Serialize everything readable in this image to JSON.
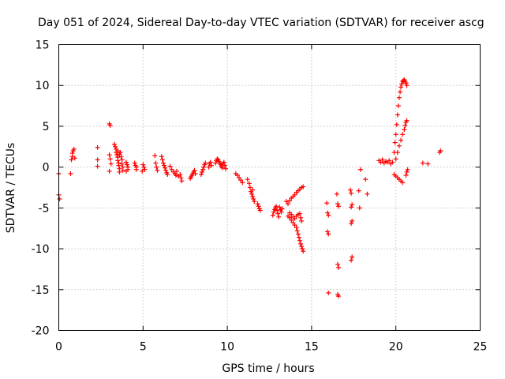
{
  "chart_data": {
    "type": "scatter",
    "title": "Day 051 of 2024, Sidereal Day-to-day VTEC variation (SDTVAR) for receiver ascg",
    "xlabel": "GPS time / hours",
    "ylabel": "SDTVAR / TECUs",
    "xlim": [
      0,
      25
    ],
    "ylim": [
      -20,
      15
    ],
    "xticks": [
      0,
      5,
      10,
      15,
      20,
      25
    ],
    "yticks": [
      -20,
      -15,
      -10,
      -5,
      0,
      5,
      10,
      15
    ],
    "grid": true,
    "marker": "+",
    "color": "#ff0000",
    "series": [
      {
        "name": "SDTVAR",
        "points": [
          [
            0.0,
            -0.8
          ],
          [
            0.0,
            -3.4
          ],
          [
            0.05,
            -3.9
          ],
          [
            0.7,
            -0.8
          ],
          [
            0.75,
            0.9
          ],
          [
            0.8,
            1.3
          ],
          [
            0.8,
            1.7
          ],
          [
            0.85,
            2.0
          ],
          [
            0.9,
            2.2
          ],
          [
            0.95,
            1.1
          ],
          [
            2.3,
            2.4
          ],
          [
            2.3,
            0.9
          ],
          [
            2.3,
            0.1
          ],
          [
            3.0,
            5.3
          ],
          [
            3.05,
            5.1
          ],
          [
            3.0,
            1.5
          ],
          [
            3.05,
            1.0
          ],
          [
            3.1,
            0.4
          ],
          [
            3.0,
            -0.5
          ],
          [
            3.3,
            2.8
          ],
          [
            3.35,
            2.5
          ],
          [
            3.4,
            2.2
          ],
          [
            3.4,
            1.8
          ],
          [
            3.45,
            1.5
          ],
          [
            3.5,
            1.2
          ],
          [
            3.5,
            0.8
          ],
          [
            3.55,
            0.5
          ],
          [
            3.55,
            0.2
          ],
          [
            3.6,
            -0.2
          ],
          [
            3.6,
            -0.6
          ],
          [
            3.65,
            1.8
          ],
          [
            3.7,
            1.3
          ],
          [
            3.75,
            0.9
          ],
          [
            3.75,
            0.4
          ],
          [
            3.8,
            0.0
          ],
          [
            3.8,
            -0.4
          ],
          [
            3.5,
            2.0
          ],
          [
            3.6,
            1.6
          ],
          [
            4.0,
            0.6
          ],
          [
            4.05,
            0.3
          ],
          [
            4.1,
            0.0
          ],
          [
            4.1,
            -0.3
          ],
          [
            4.0,
            -0.5
          ],
          [
            4.5,
            0.5
          ],
          [
            4.55,
            0.2
          ],
          [
            4.6,
            0.0
          ],
          [
            4.6,
            -0.3
          ],
          [
            5.0,
            0.3
          ],
          [
            5.05,
            0.0
          ],
          [
            5.1,
            -0.3
          ],
          [
            4.95,
            -0.5
          ],
          [
            5.7,
            1.4
          ],
          [
            5.75,
            0.5
          ],
          [
            5.8,
            0.0
          ],
          [
            5.85,
            -0.4
          ],
          [
            6.1,
            1.3
          ],
          [
            6.15,
            0.9
          ],
          [
            6.2,
            0.5
          ],
          [
            6.25,
            0.2
          ],
          [
            6.3,
            -0.1
          ],
          [
            6.35,
            -0.4
          ],
          [
            6.4,
            -0.7
          ],
          [
            6.45,
            -0.9
          ],
          [
            6.6,
            0.1
          ],
          [
            6.7,
            -0.3
          ],
          [
            6.8,
            -0.6
          ],
          [
            6.9,
            -0.8
          ],
          [
            6.95,
            -1.0
          ],
          [
            7.0,
            -0.5
          ],
          [
            7.1,
            -1.1
          ],
          [
            7.2,
            -0.9
          ],
          [
            7.25,
            -1.3
          ],
          [
            7.3,
            -1.7
          ],
          [
            7.8,
            -1.4
          ],
          [
            7.85,
            -1.2
          ],
          [
            7.9,
            -1.0
          ],
          [
            7.95,
            -0.8
          ],
          [
            8.0,
            -0.6
          ],
          [
            8.05,
            -0.4
          ],
          [
            8.1,
            -0.8
          ],
          [
            8.5,
            -0.6
          ],
          [
            8.55,
            -0.3
          ],
          [
            8.6,
            0.0
          ],
          [
            8.65,
            0.3
          ],
          [
            8.7,
            0.5
          ],
          [
            8.45,
            -0.9
          ],
          [
            8.9,
            0.0
          ],
          [
            8.95,
            0.4
          ],
          [
            9.0,
            0.6
          ],
          [
            9.05,
            0.2
          ],
          [
            9.3,
            0.5
          ],
          [
            9.35,
            0.8
          ],
          [
            9.4,
            1.0
          ],
          [
            9.45,
            0.9
          ],
          [
            9.5,
            0.7
          ],
          [
            9.55,
            0.5
          ],
          [
            9.6,
            0.3
          ],
          [
            9.65,
            0.1
          ],
          [
            9.7,
            -0.1
          ],
          [
            9.75,
            0.4
          ],
          [
            9.8,
            0.6
          ],
          [
            9.85,
            0.2
          ],
          [
            9.9,
            -0.2
          ],
          [
            10.5,
            -0.8
          ],
          [
            10.6,
            -1.0
          ],
          [
            10.7,
            -1.3
          ],
          [
            10.8,
            -1.6
          ],
          [
            10.9,
            -1.9
          ],
          [
            11.2,
            -1.5
          ],
          [
            11.3,
            -2.0
          ],
          [
            11.35,
            -2.5
          ],
          [
            11.4,
            -3.0
          ],
          [
            11.45,
            -3.3
          ],
          [
            11.5,
            -3.6
          ],
          [
            11.55,
            -3.9
          ],
          [
            11.6,
            -4.2
          ],
          [
            11.5,
            -2.8
          ],
          [
            11.8,
            -4.5
          ],
          [
            11.85,
            -4.8
          ],
          [
            11.9,
            -5.1
          ],
          [
            11.95,
            -5.3
          ],
          [
            12.7,
            -5.9
          ],
          [
            12.75,
            -5.5
          ],
          [
            12.8,
            -5.2
          ],
          [
            12.85,
            -5.0
          ],
          [
            12.9,
            -4.8
          ],
          [
            12.95,
            -5.3
          ],
          [
            13.0,
            -5.7
          ],
          [
            13.05,
            -6.1
          ],
          [
            13.1,
            -4.9
          ],
          [
            13.15,
            -5.2
          ],
          [
            13.2,
            -5.5
          ],
          [
            13.25,
            -5.1
          ],
          [
            13.5,
            -4.2
          ],
          [
            13.6,
            -4.5
          ],
          [
            13.7,
            -4.1
          ],
          [
            13.8,
            -3.8
          ],
          [
            13.9,
            -3.6
          ],
          [
            14.0,
            -3.4
          ],
          [
            14.1,
            -3.1
          ],
          [
            14.2,
            -2.9
          ],
          [
            14.3,
            -2.7
          ],
          [
            14.4,
            -2.5
          ],
          [
            14.5,
            -2.4
          ],
          [
            13.6,
            -6.0
          ],
          [
            13.7,
            -6.2
          ],
          [
            13.8,
            -6.5
          ],
          [
            13.9,
            -6.8
          ],
          [
            14.0,
            -7.1
          ],
          [
            14.1,
            -7.4
          ],
          [
            14.15,
            -7.8
          ],
          [
            14.2,
            -8.2
          ],
          [
            14.25,
            -8.6
          ],
          [
            14.3,
            -9.0
          ],
          [
            14.35,
            -9.4
          ],
          [
            14.4,
            -9.7
          ],
          [
            14.45,
            -10.0
          ],
          [
            14.5,
            -10.3
          ],
          [
            13.7,
            -5.6
          ],
          [
            13.8,
            -5.8
          ],
          [
            13.9,
            -6.1
          ],
          [
            14.0,
            -6.3
          ],
          [
            14.1,
            -6.0
          ],
          [
            14.2,
            -5.8
          ],
          [
            14.3,
            -5.7
          ],
          [
            14.35,
            -6.2
          ],
          [
            14.4,
            -6.6
          ],
          [
            15.9,
            -4.4
          ],
          [
            15.95,
            -5.6
          ],
          [
            16.0,
            -5.9
          ],
          [
            15.95,
            -7.9
          ],
          [
            16.0,
            -8.2
          ],
          [
            16.0,
            -15.4
          ],
          [
            16.5,
            -3.3
          ],
          [
            16.55,
            -4.5
          ],
          [
            16.6,
            -4.8
          ],
          [
            16.55,
            -11.9
          ],
          [
            16.6,
            -12.3
          ],
          [
            16.55,
            -15.6
          ],
          [
            16.6,
            -15.8
          ],
          [
            17.3,
            -2.8
          ],
          [
            17.35,
            -3.2
          ],
          [
            17.4,
            -4.6
          ],
          [
            17.35,
            -4.9
          ],
          [
            17.4,
            -6.6
          ],
          [
            17.35,
            -6.9
          ],
          [
            17.4,
            -11.0
          ],
          [
            17.35,
            -11.4
          ],
          [
            17.8,
            -2.9
          ],
          [
            17.85,
            -5.0
          ],
          [
            17.9,
            -0.3
          ],
          [
            18.2,
            -1.5
          ],
          [
            18.3,
            -3.3
          ],
          [
            19.0,
            0.8
          ],
          [
            19.1,
            0.6
          ],
          [
            19.2,
            0.9
          ],
          [
            19.3,
            0.5
          ],
          [
            19.4,
            0.7
          ],
          [
            19.5,
            0.6
          ],
          [
            19.6,
            0.8
          ],
          [
            19.7,
            0.4
          ],
          [
            19.8,
            0.6
          ],
          [
            19.9,
            1.8
          ],
          [
            19.95,
            3.0
          ],
          [
            20.0,
            4.0
          ],
          [
            20.05,
            5.2
          ],
          [
            20.1,
            6.4
          ],
          [
            20.15,
            7.5
          ],
          [
            20.2,
            8.5
          ],
          [
            20.25,
            9.2
          ],
          [
            20.3,
            9.8
          ],
          [
            20.35,
            10.2
          ],
          [
            20.4,
            10.5
          ],
          [
            20.45,
            10.6
          ],
          [
            20.5,
            10.7
          ],
          [
            20.55,
            10.5
          ],
          [
            20.6,
            10.3
          ],
          [
            20.65,
            10.0
          ],
          [
            20.0,
            1.0
          ],
          [
            20.1,
            1.8
          ],
          [
            20.2,
            2.6
          ],
          [
            20.3,
            3.3
          ],
          [
            20.4,
            4.0
          ],
          [
            20.5,
            4.6
          ],
          [
            20.55,
            5.1
          ],
          [
            20.6,
            5.5
          ],
          [
            20.65,
            5.7
          ],
          [
            19.9,
            -0.9
          ],
          [
            20.0,
            -1.1
          ],
          [
            20.1,
            -1.3
          ],
          [
            20.2,
            -1.5
          ],
          [
            20.3,
            -1.7
          ],
          [
            20.4,
            -1.9
          ],
          [
            20.6,
            -1.0
          ],
          [
            20.65,
            -0.6
          ],
          [
            20.7,
            -0.3
          ],
          [
            21.6,
            0.5
          ],
          [
            21.9,
            0.4
          ],
          [
            22.6,
            1.8
          ],
          [
            22.65,
            2.0
          ]
        ]
      }
    ]
  }
}
